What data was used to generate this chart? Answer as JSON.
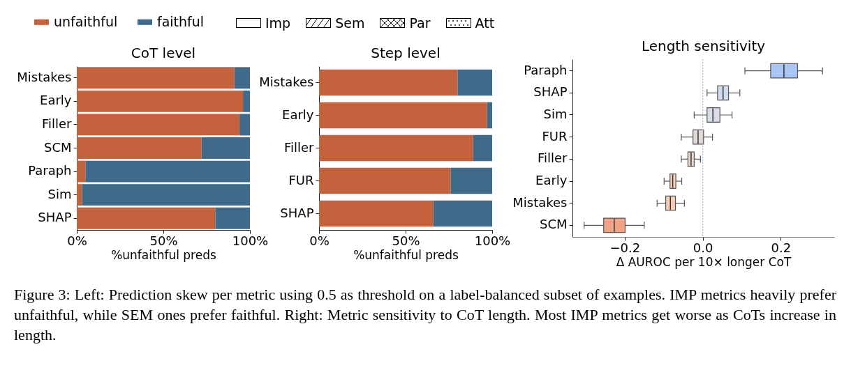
{
  "chart_data": [
    {
      "type": "bar",
      "title": "CoT level",
      "orientation": "horizontal",
      "stacked": true,
      "legend": "top",
      "xlabel": "%unfaithful preds",
      "xlim": [
        0,
        100
      ],
      "xticks": [
        {
          "value": 0,
          "label": "0%"
        },
        {
          "value": 50,
          "label": "50%"
        },
        {
          "value": 100,
          "label": "100%"
        }
      ],
      "categories": [
        "Mistakes",
        "Early",
        "Filler",
        "SCM",
        "Paraph",
        "Sim",
        "SHAP"
      ],
      "series": [
        {
          "name": "unfaithful",
          "color": "#c4623d",
          "values": [
            91,
            96,
            94,
            72,
            5,
            3,
            80
          ]
        },
        {
          "name": "faithful",
          "color": "#3f6a8a",
          "values": [
            9,
            4,
            6,
            28,
            95,
            97,
            20
          ]
        }
      ],
      "annotations": [
        "Imp",
        "Sem",
        "Par",
        "Att"
      ]
    },
    {
      "type": "bar",
      "title": "Step level",
      "orientation": "horizontal",
      "stacked": true,
      "xlabel": "%unfaithful preds",
      "xlim": [
        0,
        100
      ],
      "xticks": [
        {
          "value": 0,
          "label": "0%"
        },
        {
          "value": 50,
          "label": "50%"
        },
        {
          "value": 100,
          "label": "100%"
        }
      ],
      "categories": [
        "Mistakes",
        "Early",
        "Filler",
        "FUR",
        "SHAP"
      ],
      "series": [
        {
          "color": "#c4623d",
          "values": [
            80,
            97,
            89,
            76,
            66
          ]
        },
        {
          "color": "#3f6a8a",
          "values": [
            20,
            3,
            11,
            24,
            34
          ]
        }
      ]
    },
    {
      "type": "box",
      "title": "Length sensitivity",
      "orientation": "horizontal",
      "xlabel": "Δ AUROC per 10× longer CoT",
      "xlim": [
        -0.334,
        0.337
      ],
      "xticks": [
        {
          "value": -0.2,
          "label": "−0.2"
        },
        {
          "value": 0,
          "label": "0.0"
        },
        {
          "value": 0.2,
          "label": "0.2"
        }
      ],
      "categories": [
        "Paraph",
        "SHAP",
        "Sim",
        "FUR",
        "Filler",
        "Early",
        "Mistakes",
        "SCM"
      ],
      "boxes": [
        {
          "low": 0.108,
          "q1": 0.174,
          "median": 0.208,
          "q3": 0.243,
          "high": 0.307
        },
        {
          "low": 0.011,
          "q1": 0.038,
          "median": 0.052,
          "q3": 0.066,
          "high": 0.095
        },
        {
          "low": -0.022,
          "q1": 0.011,
          "median": 0.026,
          "q3": 0.044,
          "high": 0.075
        },
        {
          "low": -0.055,
          "q1": -0.025,
          "median": -0.012,
          "q3": 0.002,
          "high": 0.025
        },
        {
          "low": -0.055,
          "q1": -0.038,
          "median": -0.03,
          "q3": -0.022,
          "high": -0.006
        },
        {
          "low": -0.099,
          "q1": -0.084,
          "median": -0.077,
          "q3": -0.069,
          "high": -0.054
        },
        {
          "low": -0.117,
          "q1": -0.095,
          "median": -0.083,
          "q3": -0.07,
          "high": -0.047
        },
        {
          "low": -0.304,
          "q1": -0.254,
          "median": -0.227,
          "q3": -0.199,
          "high": -0.15
        }
      ],
      "colors": [
        "#a9c5f6",
        "#d2dcef",
        "#d8dde8",
        "#e2dad8",
        "#ecd7cd",
        "#f3d1be",
        "#f2cdb8",
        "#f0a385"
      ],
      "ref_lines": [
        {
          "axis": "x",
          "value": 0,
          "line_style": "dotted",
          "color": "#aaaaaa"
        }
      ],
      "annotations": [
        "Figure 3: Left: Prediction skew per metric using 0.5 as threshold on a label-balanced subset of examples. IMP metrics heavily prefer unfaithful, while SEM ones prefer faithful. Right: Metric sensitivity to CoT length. Most IMP metrics get worse as CoTs increase in length."
      ]
    }
  ]
}
